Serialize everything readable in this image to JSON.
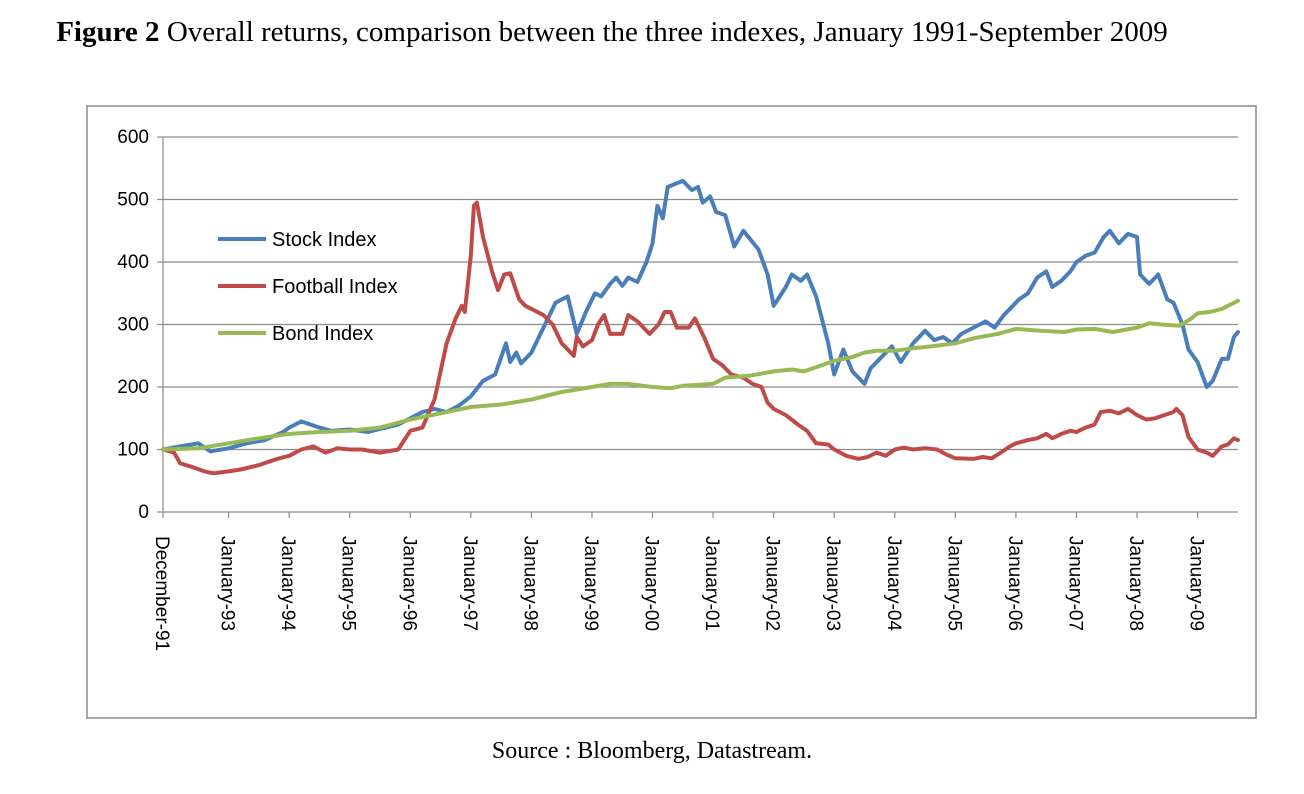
{
  "caption": {
    "label": "Figure 2",
    "text": " Overall returns, comparison between the three indexes, January 1991-September 2009"
  },
  "source": "Source : Bloomberg, Datastream.",
  "chart_data": {
    "type": "line",
    "title": "",
    "xlabel": "",
    "ylabel": "",
    "ylim": [
      0,
      600
    ],
    "yticks": [
      0,
      100,
      200,
      300,
      400,
      500,
      600
    ],
    "xlim": [
      1991.917,
      2009.667
    ],
    "grid": "horizontal",
    "legend_position": "upper-left",
    "x_ticks": [
      {
        "x": 1991.917,
        "label": "December-91"
      },
      {
        "x": 1993.0,
        "label": "January-93"
      },
      {
        "x": 1994.0,
        "label": "January-94"
      },
      {
        "x": 1995.0,
        "label": "January-95"
      },
      {
        "x": 1996.0,
        "label": "January-96"
      },
      {
        "x": 1997.0,
        "label": "January-97"
      },
      {
        "x": 1998.0,
        "label": "January-98"
      },
      {
        "x": 1999.0,
        "label": "January-99"
      },
      {
        "x": 2000.0,
        "label": "January-00"
      },
      {
        "x": 2001.0,
        "label": "January-01"
      },
      {
        "x": 2002.0,
        "label": "January-02"
      },
      {
        "x": 2003.0,
        "label": "January-03"
      },
      {
        "x": 2004.0,
        "label": "January-04"
      },
      {
        "x": 2005.0,
        "label": "January-05"
      },
      {
        "x": 2006.0,
        "label": "January-06"
      },
      {
        "x": 2007.0,
        "label": "January-07"
      },
      {
        "x": 2008.0,
        "label": "January-08"
      },
      {
        "x": 2009.0,
        "label": "January-09"
      }
    ],
    "series": [
      {
        "name": "Stock Index",
        "color": "#4a7ebb",
        "points": [
          [
            1991.917,
            100
          ],
          [
            1992.2,
            105
          ],
          [
            1992.5,
            110
          ],
          [
            1992.7,
            97
          ],
          [
            1993.0,
            102
          ],
          [
            1993.3,
            110
          ],
          [
            1993.6,
            115
          ],
          [
            1993.9,
            128
          ],
          [
            1994.0,
            135
          ],
          [
            1994.2,
            145
          ],
          [
            1994.5,
            135
          ],
          [
            1994.7,
            130
          ],
          [
            1995.0,
            132
          ],
          [
            1995.3,
            128
          ],
          [
            1995.5,
            133
          ],
          [
            1995.8,
            140
          ],
          [
            1996.0,
            150
          ],
          [
            1996.2,
            160
          ],
          [
            1996.4,
            165
          ],
          [
            1996.6,
            160
          ],
          [
            1996.8,
            170
          ],
          [
            1997.0,
            185
          ],
          [
            1997.2,
            210
          ],
          [
            1997.4,
            220
          ],
          [
            1997.58,
            270
          ],
          [
            1997.65,
            240
          ],
          [
            1997.75,
            255
          ],
          [
            1997.83,
            238
          ],
          [
            1998.0,
            255
          ],
          [
            1998.2,
            295
          ],
          [
            1998.4,
            335
          ],
          [
            1998.6,
            345
          ],
          [
            1998.75,
            285
          ],
          [
            1998.9,
            320
          ],
          [
            1999.05,
            350
          ],
          [
            1999.15,
            345
          ],
          [
            1999.3,
            365
          ],
          [
            1999.4,
            375
          ],
          [
            1999.5,
            362
          ],
          [
            1999.6,
            375
          ],
          [
            1999.75,
            368
          ],
          [
            1999.9,
            400
          ],
          [
            2000.0,
            430
          ],
          [
            2000.08,
            490
          ],
          [
            2000.17,
            470
          ],
          [
            2000.25,
            520
          ],
          [
            2000.5,
            530
          ],
          [
            2000.65,
            515
          ],
          [
            2000.75,
            520
          ],
          [
            2000.83,
            495
          ],
          [
            2000.95,
            505
          ],
          [
            2001.05,
            480
          ],
          [
            2001.2,
            475
          ],
          [
            2001.35,
            425
          ],
          [
            2001.5,
            450
          ],
          [
            2001.75,
            420
          ],
          [
            2001.9,
            380
          ],
          [
            2002.0,
            330
          ],
          [
            2002.2,
            360
          ],
          [
            2002.3,
            380
          ],
          [
            2002.45,
            370
          ],
          [
            2002.55,
            380
          ],
          [
            2002.7,
            345
          ],
          [
            2002.9,
            270
          ],
          [
            2003.0,
            220
          ],
          [
            2003.15,
            260
          ],
          [
            2003.3,
            225
          ],
          [
            2003.5,
            205
          ],
          [
            2003.6,
            230
          ],
          [
            2003.8,
            250
          ],
          [
            2003.95,
            265
          ],
          [
            2004.1,
            240
          ],
          [
            2004.3,
            270
          ],
          [
            2004.5,
            290
          ],
          [
            2004.65,
            275
          ],
          [
            2004.8,
            280
          ],
          [
            2004.95,
            270
          ],
          [
            2005.1,
            285
          ],
          [
            2005.3,
            295
          ],
          [
            2005.5,
            305
          ],
          [
            2005.65,
            295
          ],
          [
            2005.8,
            315
          ],
          [
            2005.95,
            330
          ],
          [
            2006.05,
            340
          ],
          [
            2006.2,
            350
          ],
          [
            2006.35,
            375
          ],
          [
            2006.5,
            385
          ],
          [
            2006.6,
            360
          ],
          [
            2006.75,
            370
          ],
          [
            2006.9,
            385
          ],
          [
            2007.0,
            400
          ],
          [
            2007.15,
            410
          ],
          [
            2007.3,
            415
          ],
          [
            2007.45,
            440
          ],
          [
            2007.55,
            450
          ],
          [
            2007.7,
            430
          ],
          [
            2007.85,
            445
          ],
          [
            2008.0,
            440
          ],
          [
            2008.05,
            380
          ],
          [
            2008.2,
            365
          ],
          [
            2008.35,
            380
          ],
          [
            2008.5,
            340
          ],
          [
            2008.6,
            335
          ],
          [
            2008.75,
            300
          ],
          [
            2008.85,
            260
          ],
          [
            2009.0,
            240
          ],
          [
            2009.15,
            200
          ],
          [
            2009.25,
            210
          ],
          [
            2009.4,
            245
          ],
          [
            2009.5,
            245
          ],
          [
            2009.6,
            280
          ],
          [
            2009.667,
            288
          ]
        ]
      },
      {
        "name": "Football Index",
        "color": "#be4b48",
        "points": [
          [
            1991.917,
            100
          ],
          [
            1992.1,
            95
          ],
          [
            1992.2,
            78
          ],
          [
            1992.4,
            72
          ],
          [
            1992.6,
            65
          ],
          [
            1992.75,
            62
          ],
          [
            1993.0,
            65
          ],
          [
            1993.2,
            68
          ],
          [
            1993.5,
            75
          ],
          [
            1993.8,
            85
          ],
          [
            1994.0,
            90
          ],
          [
            1994.2,
            100
          ],
          [
            1994.4,
            105
          ],
          [
            1994.6,
            95
          ],
          [
            1994.8,
            102
          ],
          [
            1995.0,
            100
          ],
          [
            1995.2,
            100
          ],
          [
            1995.5,
            95
          ],
          [
            1995.8,
            100
          ],
          [
            1996.0,
            130
          ],
          [
            1996.2,
            135
          ],
          [
            1996.4,
            180
          ],
          [
            1996.6,
            270
          ],
          [
            1996.75,
            310
          ],
          [
            1996.85,
            330
          ],
          [
            1996.9,
            320
          ],
          [
            1997.0,
            410
          ],
          [
            1997.05,
            490
          ],
          [
            1997.1,
            495
          ],
          [
            1997.2,
            440
          ],
          [
            1997.35,
            385
          ],
          [
            1997.45,
            355
          ],
          [
            1997.55,
            380
          ],
          [
            1997.65,
            382
          ],
          [
            1997.8,
            340
          ],
          [
            1997.9,
            330
          ],
          [
            1998.0,
            325
          ],
          [
            1998.2,
            315
          ],
          [
            1998.35,
            300
          ],
          [
            1998.5,
            270
          ],
          [
            1998.6,
            260
          ],
          [
            1998.7,
            250
          ],
          [
            1998.75,
            280
          ],
          [
            1998.85,
            265
          ],
          [
            1999.0,
            275
          ],
          [
            1999.1,
            300
          ],
          [
            1999.2,
            315
          ],
          [
            1999.3,
            285
          ],
          [
            1999.5,
            285
          ],
          [
            1999.6,
            315
          ],
          [
            1999.75,
            305
          ],
          [
            1999.95,
            285
          ],
          [
            2000.1,
            300
          ],
          [
            2000.2,
            320
          ],
          [
            2000.3,
            320
          ],
          [
            2000.4,
            295
          ],
          [
            2000.6,
            295
          ],
          [
            2000.7,
            310
          ],
          [
            2000.85,
            280
          ],
          [
            2001.0,
            245
          ],
          [
            2001.15,
            235
          ],
          [
            2001.3,
            220
          ],
          [
            2001.5,
            215
          ],
          [
            2001.65,
            205
          ],
          [
            2001.8,
            200
          ],
          [
            2001.9,
            175
          ],
          [
            2002.0,
            165
          ],
          [
            2002.2,
            155
          ],
          [
            2002.4,
            140
          ],
          [
            2002.55,
            130
          ],
          [
            2002.7,
            110
          ],
          [
            2002.9,
            108
          ],
          [
            2003.0,
            100
          ],
          [
            2003.2,
            90
          ],
          [
            2003.4,
            85
          ],
          [
            2003.55,
            88
          ],
          [
            2003.7,
            95
          ],
          [
            2003.85,
            90
          ],
          [
            2004.0,
            100
          ],
          [
            2004.15,
            103
          ],
          [
            2004.3,
            100
          ],
          [
            2004.5,
            102
          ],
          [
            2004.7,
            100
          ],
          [
            2004.85,
            92
          ],
          [
            2005.0,
            86
          ],
          [
            2005.3,
            85
          ],
          [
            2005.45,
            88
          ],
          [
            2005.6,
            86
          ],
          [
            2005.75,
            95
          ],
          [
            2005.9,
            105
          ],
          [
            2006.0,
            110
          ],
          [
            2006.2,
            115
          ],
          [
            2006.35,
            118
          ],
          [
            2006.5,
            125
          ],
          [
            2006.6,
            118
          ],
          [
            2006.75,
            125
          ],
          [
            2006.9,
            130
          ],
          [
            2007.0,
            128
          ],
          [
            2007.15,
            135
          ],
          [
            2007.3,
            140
          ],
          [
            2007.4,
            160
          ],
          [
            2007.55,
            162
          ],
          [
            2007.7,
            158
          ],
          [
            2007.85,
            165
          ],
          [
            2008.0,
            155
          ],
          [
            2008.15,
            148
          ],
          [
            2008.3,
            150
          ],
          [
            2008.45,
            155
          ],
          [
            2008.6,
            160
          ],
          [
            2008.65,
            165
          ],
          [
            2008.75,
            155
          ],
          [
            2008.85,
            120
          ],
          [
            2009.0,
            100
          ],
          [
            2009.15,
            95
          ],
          [
            2009.25,
            90
          ],
          [
            2009.4,
            105
          ],
          [
            2009.5,
            108
          ],
          [
            2009.6,
            118
          ],
          [
            2009.667,
            115
          ]
        ]
      },
      {
        "name": "Bond Index",
        "color": "#98b954",
        "points": [
          [
            1991.917,
            100
          ],
          [
            1992.5,
            102
          ],
          [
            1993.0,
            110
          ],
          [
            1993.5,
            118
          ],
          [
            1994.0,
            125
          ],
          [
            1994.5,
            128
          ],
          [
            1995.0,
            130
          ],
          [
            1995.5,
            135
          ],
          [
            1996.0,
            148
          ],
          [
            1996.5,
            158
          ],
          [
            1997.0,
            168
          ],
          [
            1997.5,
            172
          ],
          [
            1998.0,
            180
          ],
          [
            1998.5,
            192
          ],
          [
            1999.0,
            200
          ],
          [
            1999.3,
            205
          ],
          [
            1999.6,
            205
          ],
          [
            2000.0,
            200
          ],
          [
            2000.3,
            198
          ],
          [
            2000.5,
            202
          ],
          [
            2001.0,
            205
          ],
          [
            2001.2,
            215
          ],
          [
            2001.6,
            218
          ],
          [
            2002.0,
            225
          ],
          [
            2002.3,
            228
          ],
          [
            2002.5,
            225
          ],
          [
            2002.8,
            235
          ],
          [
            2003.0,
            242
          ],
          [
            2003.3,
            248
          ],
          [
            2003.5,
            255
          ],
          [
            2003.7,
            258
          ],
          [
            2004.0,
            258
          ],
          [
            2004.3,
            262
          ],
          [
            2004.6,
            265
          ],
          [
            2005.0,
            270
          ],
          [
            2005.3,
            278
          ],
          [
            2005.7,
            285
          ],
          [
            2006.0,
            293
          ],
          [
            2006.4,
            290
          ],
          [
            2006.8,
            288
          ],
          [
            2007.0,
            292
          ],
          [
            2007.3,
            293
          ],
          [
            2007.6,
            288
          ],
          [
            2008.0,
            295
          ],
          [
            2008.2,
            302
          ],
          [
            2008.4,
            300
          ],
          [
            2008.7,
            298
          ],
          [
            2008.9,
            310
          ],
          [
            2009.0,
            318
          ],
          [
            2009.2,
            320
          ],
          [
            2009.4,
            325
          ],
          [
            2009.667,
            338
          ]
        ]
      }
    ]
  }
}
